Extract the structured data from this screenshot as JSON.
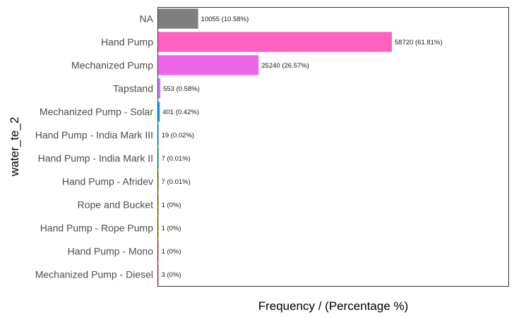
{
  "chart_data": {
    "type": "bar",
    "orientation": "horizontal",
    "xlabel": "Frequency / (Percentage %)",
    "ylabel": "water_te_2",
    "xlim": [
      0,
      62000
    ],
    "grid": false,
    "legend": "none",
    "categories": [
      "NA",
      "Hand Pump",
      "Mechanized Pump",
      "Tapstand",
      "Mechanized Pump - Solar",
      "Hand Pump - India Mark III",
      "Hand Pump - India Mark II",
      "Hand Pump - Afridev",
      "Rope and Bucket",
      "Hand Pump - Rope Pump",
      "Hand Pump - Mono",
      "Mechanized Pump - Diesel"
    ],
    "values": [
      10055,
      58720,
      25240,
      553,
      401,
      19,
      7,
      7,
      1,
      1,
      1,
      3
    ],
    "value_labels": [
      "10055 (10.58%)",
      "58720 (61.81%)",
      "25240 (26.57%)",
      "553 (0.58%)",
      "401 (0.42%)",
      "19 (0.02%)",
      "7 (0.01%)",
      "7 (0.01%)",
      "1 (0%)",
      "1 (0%)",
      "1 (0%)",
      "3 (0%)"
    ],
    "colors": [
      "#7f7f7f",
      "#ff61c3",
      "#ef67e8",
      "#c77cff",
      "#00a9ff",
      "#00bfc4",
      "#00be67",
      "#7cae00",
      "#cd9600",
      "#e6a000",
      "#f8766d",
      "#ff6c91"
    ],
    "panel_border_color": "#333333"
  }
}
